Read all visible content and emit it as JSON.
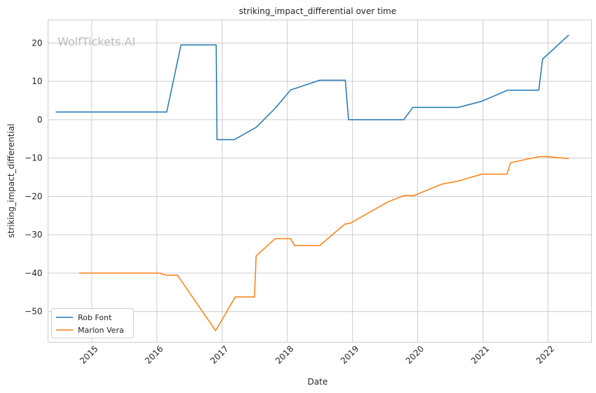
{
  "watermark": "WolfTickets.AI",
  "chart_data": {
    "type": "line",
    "title": "striking_impact_differential over time",
    "xlabel": "Date",
    "ylabel": "striking_impact_differential",
    "xlim": [
      "2014-05-01",
      "2022-09-01"
    ],
    "ylim": [
      -58,
      26
    ],
    "x_ticks": [
      "2015-01-01",
      "2016-01-01",
      "2017-01-01",
      "2018-01-01",
      "2019-01-01",
      "2020-01-01",
      "2021-01-01",
      "2022-01-01"
    ],
    "x_tick_labels": [
      "2015",
      "2016",
      "2017",
      "2018",
      "2019",
      "2020",
      "2021",
      "2022"
    ],
    "y_ticks": [
      20,
      10,
      0,
      -10,
      -20,
      -30,
      -40,
      -50
    ],
    "y_tick_labels": [
      "20",
      "10",
      "0",
      "−10",
      "−20",
      "−30",
      "−40",
      "−50"
    ],
    "grid": true,
    "legend_position": "lower-left",
    "series": [
      {
        "name": "Rob Font",
        "color": "#1f77b4",
        "points": [
          [
            "2014-06-15",
            2.0
          ],
          [
            "2016-02-25",
            2.0
          ],
          [
            "2016-05-15",
            19.5
          ],
          [
            "2016-11-28",
            19.5
          ],
          [
            "2016-12-03",
            -5.2
          ],
          [
            "2017-03-10",
            -5.2
          ],
          [
            "2017-06-20",
            -2.5
          ],
          [
            "2017-07-10",
            -2.0
          ],
          [
            "2017-10-25",
            3.0
          ],
          [
            "2018-01-20",
            7.8
          ],
          [
            "2018-02-05",
            8.0
          ],
          [
            "2018-07-01",
            10.3
          ],
          [
            "2018-11-22",
            10.3
          ],
          [
            "2018-12-10",
            0.0
          ],
          [
            "2019-10-15",
            0.0
          ],
          [
            "2019-12-05",
            3.2
          ],
          [
            "2020-08-15",
            3.2
          ],
          [
            "2020-12-25",
            4.8
          ],
          [
            "2021-05-20",
            7.7
          ],
          [
            "2021-11-10",
            7.7
          ],
          [
            "2021-12-01",
            15.8
          ],
          [
            "2022-04-25",
            22.0
          ]
        ]
      },
      {
        "name": "Marlon Vera",
        "color": "#ff7f0e",
        "points": [
          [
            "2014-10-25",
            -40.0
          ],
          [
            "2016-01-15",
            -40.0
          ],
          [
            "2016-02-20",
            -40.5
          ],
          [
            "2016-04-25",
            -40.5
          ],
          [
            "2016-11-25",
            -55.0
          ],
          [
            "2017-03-15",
            -46.2
          ],
          [
            "2017-07-01",
            -46.2
          ],
          [
            "2017-07-10",
            -35.5
          ],
          [
            "2017-10-25",
            -31.0
          ],
          [
            "2018-01-20",
            -31.0
          ],
          [
            "2018-02-10",
            -32.8
          ],
          [
            "2018-07-01",
            -32.8
          ],
          [
            "2018-11-20",
            -27.2
          ],
          [
            "2018-12-20",
            -27.0
          ],
          [
            "2019-07-15",
            -21.5
          ],
          [
            "2019-10-15",
            -19.8
          ],
          [
            "2019-12-10",
            -19.8
          ],
          [
            "2020-05-15",
            -16.8
          ],
          [
            "2020-08-15",
            -16.0
          ],
          [
            "2020-12-25",
            -14.2
          ],
          [
            "2021-05-15",
            -14.2
          ],
          [
            "2021-06-05",
            -11.2
          ],
          [
            "2021-11-15",
            -9.6
          ],
          [
            "2021-12-20",
            -9.6
          ],
          [
            "2022-04-25",
            -10.1
          ]
        ]
      }
    ]
  }
}
